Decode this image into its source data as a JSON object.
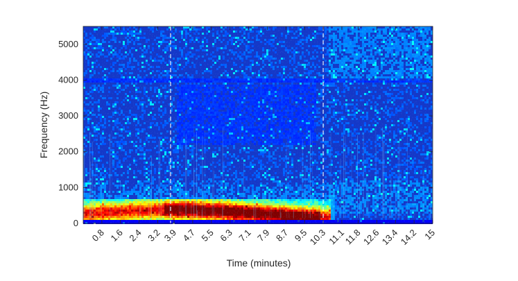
{
  "chart_data": {
    "type": "heatmap",
    "subtype": "spectrogram",
    "colormap": "jet",
    "xlabel": "Time (minutes)",
    "ylabel": "Frequency (Hz)",
    "xlim": [
      0,
      15
    ],
    "ylim": [
      0,
      5500
    ],
    "x_ticks": [
      0.8,
      1.6,
      2.4,
      3.2,
      3.9,
      4.7,
      5.5,
      6.3,
      7.1,
      7.9,
      8.7,
      9.5,
      10.3,
      11.1,
      11.8,
      12.6,
      13.4,
      14.2,
      15
    ],
    "x_tick_labels": [
      "0.8",
      "1.6",
      "2.4",
      "3.2",
      "3.9",
      "4.7",
      "5.5",
      "6.3",
      "7.1",
      "7.9",
      "8.7",
      "9.5",
      "10.3",
      "11.1",
      "11.8",
      "12.6",
      "13.4",
      "14.2",
      "15"
    ],
    "y_ticks": [
      0,
      1000,
      2000,
      3000,
      4000,
      5000
    ],
    "y_tick_labels": [
      "0",
      "1000",
      "2000",
      "3000",
      "4000",
      "5000"
    ],
    "marker_lines_x": [
      3.75,
      10.3
    ],
    "marker_line_style": "dashed",
    "marker_line_color": "#e8eef8",
    "grid": false,
    "colors": {
      "background_low": "#0a1fb0",
      "background_high": "#1f66e8",
      "hot": "#b01010"
    }
  }
}
